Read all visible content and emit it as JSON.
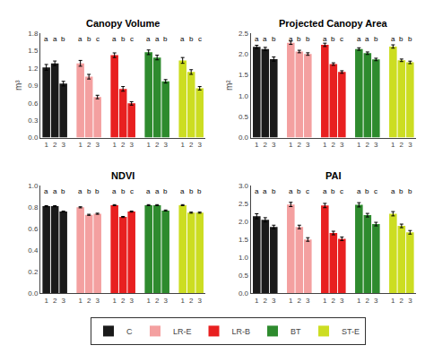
{
  "chart_data": [
    {
      "type": "bar",
      "title": "Canopy Volume",
      "y_label": "m³",
      "categories": [
        "1",
        "2",
        "3"
      ],
      "ylim": [
        0,
        1.8
      ],
      "yticks": [
        {
          "value": 0.0,
          "label": "0.0"
        },
        0.3,
        0.6,
        0.9,
        1.2,
        1.5,
        1.8
      ],
      "grid": false,
      "legend": "bottom",
      "series": [
        {
          "name": "C",
          "color": "#1a1a1a",
          "values": [
            1.21,
            1.28,
            0.93
          ],
          "errors": [
            0.05,
            0.04,
            0.04
          ],
          "annotations": [
            "a",
            "a",
            "b"
          ]
        },
        {
          "name": "LR-E",
          "color": "#f4a0a0",
          "values": [
            1.28,
            1.05,
            0.7
          ],
          "errors": [
            0.05,
            0.04,
            0.03
          ],
          "annotations": [
            "a",
            "b",
            "c"
          ]
        },
        {
          "name": "LR-B",
          "color": "#e82020",
          "values": [
            1.42,
            0.84,
            0.59
          ],
          "errors": [
            0.04,
            0.04,
            0.03
          ],
          "annotations": [
            "a",
            "b",
            "c"
          ]
        },
        {
          "name": "BT",
          "color": "#2e8b2e",
          "values": [
            1.47,
            1.38,
            0.97
          ],
          "errors": [
            0.04,
            0.04,
            0.03
          ],
          "annotations": [
            "a",
            "a",
            "b"
          ]
        },
        {
          "name": "ST-E",
          "color": "#ccdd22",
          "values": [
            1.33,
            1.13,
            0.85
          ],
          "errors": [
            0.05,
            0.04,
            0.03
          ],
          "annotations": [
            "a",
            "b",
            "c"
          ]
        }
      ]
    },
    {
      "type": "bar",
      "title": "Projected Canopy Area",
      "y_label": "m²",
      "categories": [
        "1",
        "2",
        "3"
      ],
      "ylim": [
        0,
        2.5
      ],
      "yticks": [
        {
          "value": 0.0,
          "label": "0.0"
        },
        0.5,
        {
          "value": 1.0,
          "label": "1.0"
        },
        1.5,
        {
          "value": 2.0,
          "label": "2.0"
        },
        2.5
      ],
      "grid": false,
      "series": [
        {
          "name": "C",
          "color": "#1a1a1a",
          "values": [
            2.17,
            2.12,
            1.88
          ],
          "errors": [
            0.04,
            0.04,
            0.05
          ],
          "annotations": [
            "a",
            "a",
            "b"
          ]
        },
        {
          "name": "LR-E",
          "color": "#f4a0a0",
          "values": [
            2.27,
            2.06,
            2.0
          ],
          "errors": [
            0.04,
            0.03,
            0.03
          ],
          "annotations": [
            "a",
            "b",
            "b"
          ]
        },
        {
          "name": "LR-B",
          "color": "#e82020",
          "values": [
            2.22,
            1.76,
            1.57
          ],
          "errors": [
            0.04,
            0.03,
            0.03
          ],
          "annotations": [
            "a",
            "b",
            "c"
          ]
        },
        {
          "name": "BT",
          "color": "#2e8b2e",
          "values": [
            2.12,
            2.02,
            1.87
          ],
          "errors": [
            0.03,
            0.03,
            0.03
          ],
          "annotations": [
            "a",
            "a",
            "b"
          ]
        },
        {
          "name": "ST-E",
          "color": "#ccdd22",
          "values": [
            2.18,
            1.85,
            1.8
          ],
          "errors": [
            0.04,
            0.03,
            0.03
          ],
          "annotations": [
            "a",
            "b",
            "b"
          ]
        }
      ]
    },
    {
      "type": "bar",
      "title": "NDVI",
      "categories": [
        "1",
        "2",
        "3"
      ],
      "ylim": [
        0,
        1.0
      ],
      "yticks": [
        {
          "value": 0.0,
          "label": "0.0"
        },
        0.2,
        0.4,
        0.6,
        0.8,
        {
          "value": 1.0,
          "label": "1.0"
        }
      ],
      "grid": false,
      "series": [
        {
          "name": "C",
          "color": "#1a1a1a",
          "values": [
            0.81,
            0.81,
            0.76
          ],
          "errors": [
            0.005,
            0.005,
            0.005
          ],
          "annotations": [
            "a",
            "a",
            "b"
          ]
        },
        {
          "name": "LR-E",
          "color": "#f4a0a0",
          "values": [
            0.8,
            0.73,
            0.74
          ],
          "errors": [
            0.005,
            0.005,
            0.005
          ],
          "annotations": [
            "a",
            "b",
            "b"
          ]
        },
        {
          "name": "LR-B",
          "color": "#e82020",
          "values": [
            0.82,
            0.71,
            0.76
          ],
          "errors": [
            0.005,
            0.005,
            0.005
          ],
          "annotations": [
            "a",
            "b",
            "c"
          ]
        },
        {
          "name": "BT",
          "color": "#2e8b2e",
          "values": [
            0.82,
            0.82,
            0.77
          ],
          "errors": [
            0.005,
            0.005,
            0.005
          ],
          "annotations": [
            "a",
            "a",
            "b"
          ]
        },
        {
          "name": "ST-E",
          "color": "#ccdd22",
          "values": [
            0.82,
            0.75,
            0.75
          ],
          "errors": [
            0.005,
            0.005,
            0.005
          ],
          "annotations": [
            "a",
            "b",
            "b"
          ]
        }
      ]
    },
    {
      "type": "bar",
      "title": "PAI",
      "categories": [
        "1",
        "2",
        "3"
      ],
      "ylim": [
        0,
        3.0
      ],
      "yticks": [
        {
          "value": 0.0,
          "label": "0.0"
        },
        0.5,
        {
          "value": 1.0,
          "label": "1.0"
        },
        1.5,
        {
          "value": 2.0,
          "label": "2.0"
        },
        2.5,
        {
          "value": 3.0,
          "label": "3.0"
        }
      ],
      "grid": false,
      "series": [
        {
          "name": "C",
          "color": "#1a1a1a",
          "values": [
            2.15,
            2.05,
            1.85
          ],
          "errors": [
            0.07,
            0.06,
            0.05
          ],
          "annotations": [
            "a",
            "a",
            "b"
          ]
        },
        {
          "name": "LR-E",
          "color": "#f4a0a0",
          "values": [
            2.48,
            1.85,
            1.5
          ],
          "errors": [
            0.06,
            0.05,
            0.05
          ],
          "annotations": [
            "a",
            "b",
            "c"
          ]
        },
        {
          "name": "LR-B",
          "color": "#e82020",
          "values": [
            2.45,
            1.68,
            1.52
          ],
          "errors": [
            0.06,
            0.05,
            0.05
          ],
          "annotations": [
            "a",
            "b",
            "c"
          ]
        },
        {
          "name": "BT",
          "color": "#2e8b2e",
          "values": [
            2.47,
            2.18,
            1.93
          ],
          "errors": [
            0.06,
            0.05,
            0.05
          ],
          "annotations": [
            "a",
            "b",
            "c"
          ]
        },
        {
          "name": "ST-E",
          "color": "#ccdd22",
          "values": [
            2.22,
            1.88,
            1.7
          ],
          "errors": [
            0.06,
            0.05,
            0.05
          ],
          "annotations": [
            "a",
            "b",
            "b"
          ]
        }
      ]
    }
  ]
}
